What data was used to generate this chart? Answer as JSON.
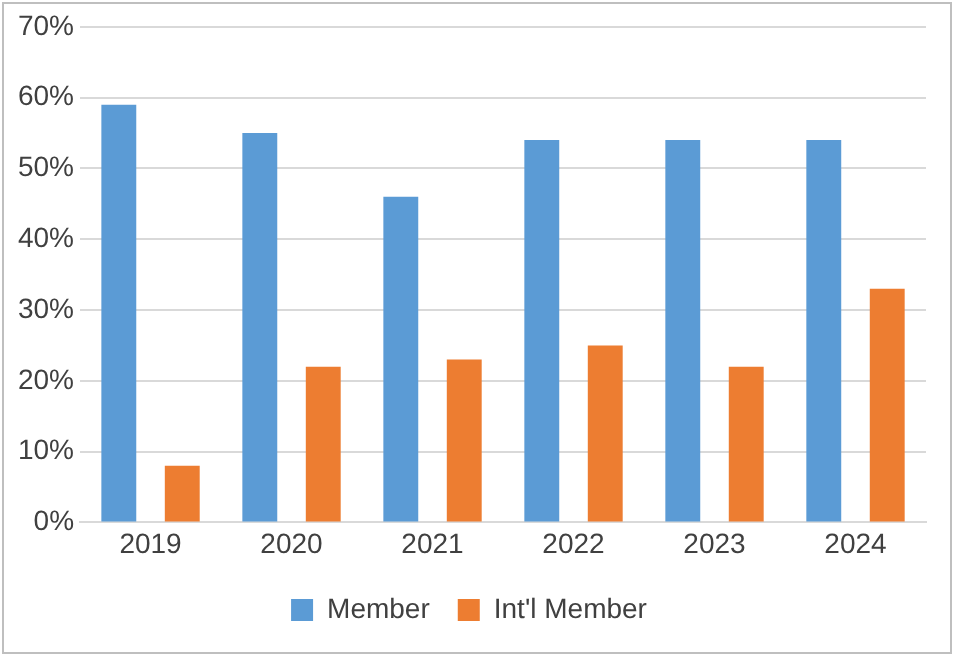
{
  "chart_data": {
    "type": "bar",
    "categories": [
      "2019",
      "2020",
      "2021",
      "2022",
      "2023",
      "2024"
    ],
    "series": [
      {
        "name": "Member",
        "color": "#5b9bd5",
        "values": [
          59,
          55,
          46,
          54,
          54,
          54
        ]
      },
      {
        "name": "Int'l Member",
        "color": "#ed7d31",
        "values": [
          8,
          22,
          23,
          25,
          22,
          33
        ]
      }
    ],
    "ylim": [
      0,
      70
    ],
    "yticks": [
      {
        "value": 0,
        "label": "0%"
      },
      {
        "value": 10,
        "label": "10%"
      },
      {
        "value": 20,
        "label": "20%"
      },
      {
        "value": 30,
        "label": "30%"
      },
      {
        "value": 40,
        "label": "40%"
      },
      {
        "value": 50,
        "label": "50%"
      },
      {
        "value": 60,
        "label": "60%"
      },
      {
        "value": 70,
        "label": "70%"
      }
    ],
    "grid": "y",
    "legend": "bottom"
  }
}
